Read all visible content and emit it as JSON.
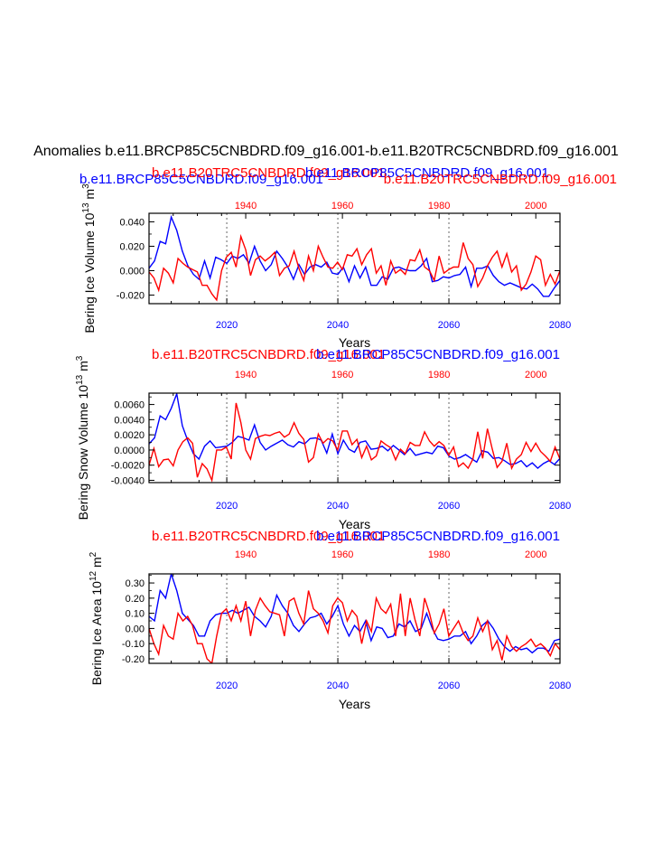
{
  "page": {
    "main_title": "Anomalies b.e11.BRCP85C5CNBDRD.f09_g16.001-b.e11.B20TRC5CNBDRD.f09_g16.001",
    "colors": {
      "red_series": "#ff0000",
      "blue_series": "#0000ff",
      "axis": "#000000",
      "grid": "#666666"
    }
  },
  "chart_data": [
    {
      "type": "line",
      "ylabel": "Bering Ice Volume 10",
      "ylabel_sup": "13",
      "ylabel_unit": " m",
      "ylabel_unit_sup": "3",
      "xlabel": "Years",
      "overlay_titles": [
        {
          "text": "b.e11.BRCP85C5CNBDRD.f09_g16.001",
          "color": "#0000ff",
          "anchor": "left"
        },
        {
          "text": "b.e11.B20TRC5CNBDRD.f09_g16.001",
          "color": "#ff0000",
          "anchor": "center"
        },
        {
          "text": "b.e11.BRCP85C5CNBDRD.f09_g16.001",
          "color": "#0000ff",
          "anchor": "center"
        },
        {
          "text": "b.e11.B20TRC5CNBDRD.f09_g16.001",
          "color": "#ff0000",
          "anchor": "right"
        }
      ],
      "ylim": [
        -0.027,
        0.047
      ],
      "yticks": [
        -0.02,
        0.0,
        0.02,
        0.04
      ],
      "ytick_labels": [
        "-0.020",
        "0.000",
        "0.020",
        "0.040"
      ],
      "bottom_xaxis": {
        "range": [
          2006,
          2080
        ],
        "ticks": [
          2020,
          2040,
          2060,
          2080
        ],
        "color": "#0000ff"
      },
      "top_xaxis": {
        "range": [
          1920,
          2005
        ],
        "ticks": [
          1940,
          1960,
          1980,
          2000
        ],
        "color": "#ff0000"
      },
      "grid_x": [
        2020,
        2040,
        2060
      ],
      "series": [
        {
          "name": "b.e11.BRCP85C5CNBDRD.f09_g16.001",
          "color": "#0000ff",
          "x_start": 2006,
          "values": [
            0.002,
            0.008,
            0.024,
            0.022,
            0.044,
            0.033,
            0.016,
            0.004,
            -0.003,
            -0.007,
            0.008,
            -0.006,
            0.011,
            0.009,
            0.006,
            0.012,
            0.01,
            0.013,
            0.006,
            0.02,
            0.008,
            0.0,
            0.005,
            0.016,
            0.01,
            0.003,
            -0.007,
            0.005,
            -0.003,
            0.003,
            0.005,
            0.003,
            0.007,
            -0.002,
            -0.003,
            0.003,
            -0.009,
            0.004,
            -0.006,
            0.003,
            -0.012,
            -0.012,
            -0.005,
            -0.007,
            0.002,
            0.003,
            0.001,
            0.0,
            0.0,
            0.004,
            0.01,
            -0.009,
            -0.008,
            -0.005,
            -0.006,
            -0.004,
            -0.003,
            0.003,
            -0.013,
            0.002,
            0.002,
            0.004,
            -0.004,
            -0.009,
            -0.012,
            -0.01,
            -0.012,
            -0.014,
            -0.015,
            -0.011,
            -0.015,
            -0.021,
            -0.021,
            -0.014,
            -0.008,
            -0.007,
            -0.015,
            -0.007,
            -0.017
          ]
        },
        {
          "name": "b.e11.B20TRC5CNBDRD.f09_g16.001",
          "color": "#ff0000",
          "x_start": 1920,
          "values": [
            -0.001,
            -0.006,
            -0.016,
            0.002,
            -0.002,
            -0.01,
            0.01,
            0.006,
            0.003,
            0.001,
            -0.001,
            -0.012,
            -0.012,
            -0.019,
            -0.024,
            0.0,
            0.011,
            0.015,
            0.003,
            0.028,
            0.017,
            -0.004,
            0.009,
            0.012,
            0.008,
            0.011,
            0.015,
            -0.004,
            0.002,
            0.004,
            0.016,
            0.002,
            -0.008,
            0.012,
            0.0,
            0.02,
            0.011,
            0.003,
            0.002,
            0.007,
            0.001,
            0.013,
            0.012,
            0.018,
            0.005,
            0.013,
            0.018,
            -0.002,
            0.004,
            -0.012,
            0.008,
            -0.002,
            0.001,
            -0.003,
            0.009,
            0.008,
            0.017,
            0.003,
            0.0,
            -0.008,
            0.012,
            -0.002,
            0.001,
            0.003,
            0.003,
            0.023,
            0.01,
            0.005,
            -0.013,
            -0.006,
            0.004,
            0.011,
            0.016,
            0.003,
            0.014,
            -0.001,
            0.004,
            -0.016,
            -0.011,
            -0.001,
            0.012,
            0.009,
            -0.012,
            -0.003,
            -0.011,
            0.0
          ]
        }
      ]
    },
    {
      "type": "line",
      "ylabel": "Bering Snow Volume 10",
      "ylabel_sup": "13",
      "ylabel_unit": " m",
      "ylabel_unit_sup": "3",
      "xlabel": "Years",
      "overlay_titles": [
        {
          "text": "b.e11.B20TRC5CNBDRD.f09_g16.001",
          "color": "#ff0000",
          "anchor": "left"
        },
        {
          "text": "b.e11.BRCP85C5CNBDRD.f09_g16.001",
          "color": "#0000ff",
          "anchor": "right"
        }
      ],
      "ylim": [
        -0.0043,
        0.0075
      ],
      "yticks": [
        -0.004,
        -0.002,
        0.0,
        0.002,
        0.004,
        0.006
      ],
      "ytick_labels": [
        "-0.0040",
        "-0.0020",
        "0.0000",
        "0.0020",
        "0.0040",
        "0.0060"
      ],
      "bottom_xaxis": {
        "range": [
          2006,
          2080
        ],
        "ticks": [
          2020,
          2040,
          2060,
          2080
        ],
        "color": "#0000ff"
      },
      "top_xaxis": {
        "range": [
          1920,
          2005
        ],
        "ticks": [
          1940,
          1960,
          1980,
          2000
        ],
        "color": "#ff0000"
      },
      "grid_x": [
        2020,
        2040,
        2060
      ],
      "series": [
        {
          "name": "b.e11.BRCP85C5CNBDRD.f09_g16.001",
          "color": "#0000ff",
          "x_start": 2006,
          "values": [
            0.0008,
            0.0016,
            0.0045,
            0.004,
            0.0055,
            0.0074,
            0.0032,
            0.0012,
            -0.0005,
            -0.0012,
            0.0005,
            0.0012,
            0.0003,
            0.0004,
            0.0005,
            0.001,
            0.0018,
            0.0016,
            0.0013,
            0.0033,
            0.001,
            0.0,
            0.0005,
            0.0009,
            0.0013,
            0.0007,
            0.0004,
            0.0011,
            0.0008,
            0.0015,
            0.0016,
            0.0013,
            -0.0004,
            0.0021,
            -0.0005,
            0.0013,
            0.0001,
            -0.0003,
            0.001,
            0.0012,
            0.0001,
            0.0002,
            0.0005,
            -0.0001,
            0.0006,
            0.0,
            -0.0006,
            0.0002,
            -0.0007,
            -0.0005,
            -0.0003,
            -0.0005,
            0.0005,
            0.0003,
            -0.0008,
            -0.0012,
            -0.001,
            -0.0006,
            -0.0011,
            -0.0016,
            -0.0001,
            -0.0003,
            -0.0011,
            -0.001,
            -0.0014,
            -0.0019,
            -0.0018,
            -0.0014,
            -0.0022,
            -0.0017,
            -0.0024,
            -0.0018,
            -0.0014,
            -0.0019,
            -0.0011,
            -0.0008,
            -0.0014,
            -0.0013,
            -0.0022
          ]
        },
        {
          "name": "b.e11.B20TRC5CNBDRD.f09_g16.001",
          "color": "#ff0000",
          "x_start": 1920,
          "values": [
            -0.002,
            0.0002,
            -0.0022,
            -0.0013,
            -0.0012,
            -0.0021,
            0.0,
            0.0011,
            0.0016,
            0.0009,
            -0.0036,
            -0.0018,
            -0.0025,
            -0.004,
            0.0,
            0.0,
            0.0004,
            -0.0012,
            0.0062,
            0.0036,
            0.0,
            -0.0012,
            0.0015,
            0.0018,
            0.002,
            0.0019,
            0.0022,
            0.0024,
            0.0017,
            0.0021,
            0.0036,
            0.0022,
            0.0014,
            -0.0016,
            -0.001,
            0.0021,
            0.0009,
            0.0015,
            0.0012,
            0.0,
            0.0025,
            0.0025,
            0.0007,
            0.0014,
            -0.001,
            0.0005,
            -0.0013,
            -0.0008,
            0.0012,
            0.0007,
            0.0003,
            -0.0013,
            0.0001,
            -0.0005,
            0.001,
            0.0006,
            0.0006,
            0.0024,
            0.0012,
            0.0005,
            0.0011,
            0.0006,
            -0.0007,
            0.0004,
            -0.0022,
            -0.0017,
            -0.0024,
            -0.0012,
            0.0024,
            -0.0011,
            0.0028,
            0.0001,
            -0.0023,
            -0.0015,
            0.0009,
            -0.0024,
            -0.0012,
            -0.0006,
            0.001,
            -0.0002,
            0.0009,
            -0.0002,
            -0.0008,
            -0.0015,
            0.0004,
            -0.0012
          ]
        }
      ]
    },
    {
      "type": "line",
      "ylabel": "Bering Ice Area 10",
      "ylabel_sup": "12",
      "ylabel_unit": " m",
      "ylabel_unit_sup": "2",
      "xlabel": "Years",
      "overlay_titles": [
        {
          "text": "b.e11.B20TRC5CNBDRD.f09_g16.001",
          "color": "#ff0000",
          "anchor": "left"
        },
        {
          "text": "b.e11.BRCP85C5CNBDRD.f09_g16.001",
          "color": "#0000ff",
          "anchor": "right"
        }
      ],
      "ylim": [
        -0.23,
        0.36
      ],
      "yticks": [
        -0.2,
        -0.1,
        0.0,
        0.1,
        0.2,
        0.3
      ],
      "ytick_labels": [
        "-0.20",
        "-0.10",
        "0.00",
        "0.10",
        "0.20",
        "0.30"
      ],
      "bottom_xaxis": {
        "range": [
          2006,
          2080
        ],
        "ticks": [
          2020,
          2040,
          2060,
          2080
        ],
        "color": "#0000ff"
      },
      "top_xaxis": {
        "range": [
          1920,
          2005
        ],
        "ticks": [
          1940,
          1960,
          1980,
          2000
        ],
        "color": "#ff0000"
      },
      "grid_x": [
        2020,
        2040,
        2060
      ],
      "series": [
        {
          "name": "b.e11.BRCP85C5CNBDRD.f09_g16.001",
          "color": "#0000ff",
          "x_start": 2006,
          "values": [
            0.08,
            0.05,
            0.25,
            0.2,
            0.36,
            0.25,
            0.1,
            0.06,
            0.02,
            -0.05,
            -0.05,
            0.05,
            0.09,
            0.1,
            0.1,
            0.12,
            0.1,
            0.12,
            0.14,
            0.08,
            0.05,
            0.01,
            0.08,
            0.22,
            0.15,
            0.1,
            0.02,
            -0.02,
            0.03,
            0.07,
            0.08,
            0.1,
            0.03,
            0.08,
            0.15,
            0.03,
            -0.05,
            0.02,
            -0.02,
            0.05,
            -0.08,
            0.01,
            0.0,
            -0.06,
            -0.05,
            0.03,
            0.01,
            0.05,
            -0.02,
            0.0,
            0.1,
            0.0,
            -0.07,
            -0.08,
            -0.07,
            -0.05,
            -0.05,
            -0.02,
            -0.1,
            -0.05,
            0.02,
            0.05,
            0.0,
            -0.07,
            -0.12,
            -0.15,
            -0.12,
            -0.14,
            -0.13,
            -0.16,
            -0.13,
            -0.13,
            -0.15,
            -0.08,
            -0.07,
            -0.05,
            -0.12,
            -0.05,
            -0.13
          ]
        },
        {
          "name": "b.e11.B20TRC5CNBDRD.f09_g16.001",
          "color": "#ff0000",
          "x_start": 1920,
          "values": [
            0.0,
            -0.1,
            -0.17,
            0.02,
            -0.05,
            -0.07,
            0.1,
            0.05,
            0.08,
            0.02,
            -0.1,
            -0.1,
            -0.2,
            -0.23,
            -0.05,
            0.1,
            0.13,
            0.05,
            0.15,
            0.05,
            0.18,
            -0.05,
            0.12,
            0.2,
            0.15,
            0.11,
            0.1,
            0.09,
            -0.05,
            0.18,
            0.2,
            0.1,
            0.03,
            0.25,
            0.13,
            0.1,
            0.05,
            -0.03,
            0.15,
            0.2,
            0.17,
            0.05,
            0.12,
            0.08,
            -0.1,
            0.05,
            -0.02,
            0.2,
            0.13,
            0.1,
            0.16,
            -0.05,
            0.23,
            -0.05,
            0.2,
            0.06,
            -0.05,
            0.2,
            0.1,
            -0.03,
            0.03,
            0.13,
            -0.05,
            0.0,
            0.05,
            -0.03,
            -0.08,
            -0.05,
            0.07,
            -0.02,
            0.05,
            -0.14,
            -0.08,
            -0.21,
            -0.05,
            -0.12,
            -0.15,
            -0.12,
            -0.1,
            -0.07,
            -0.12,
            -0.1,
            -0.13,
            -0.18,
            -0.1,
            -0.14
          ]
        }
      ]
    }
  ]
}
